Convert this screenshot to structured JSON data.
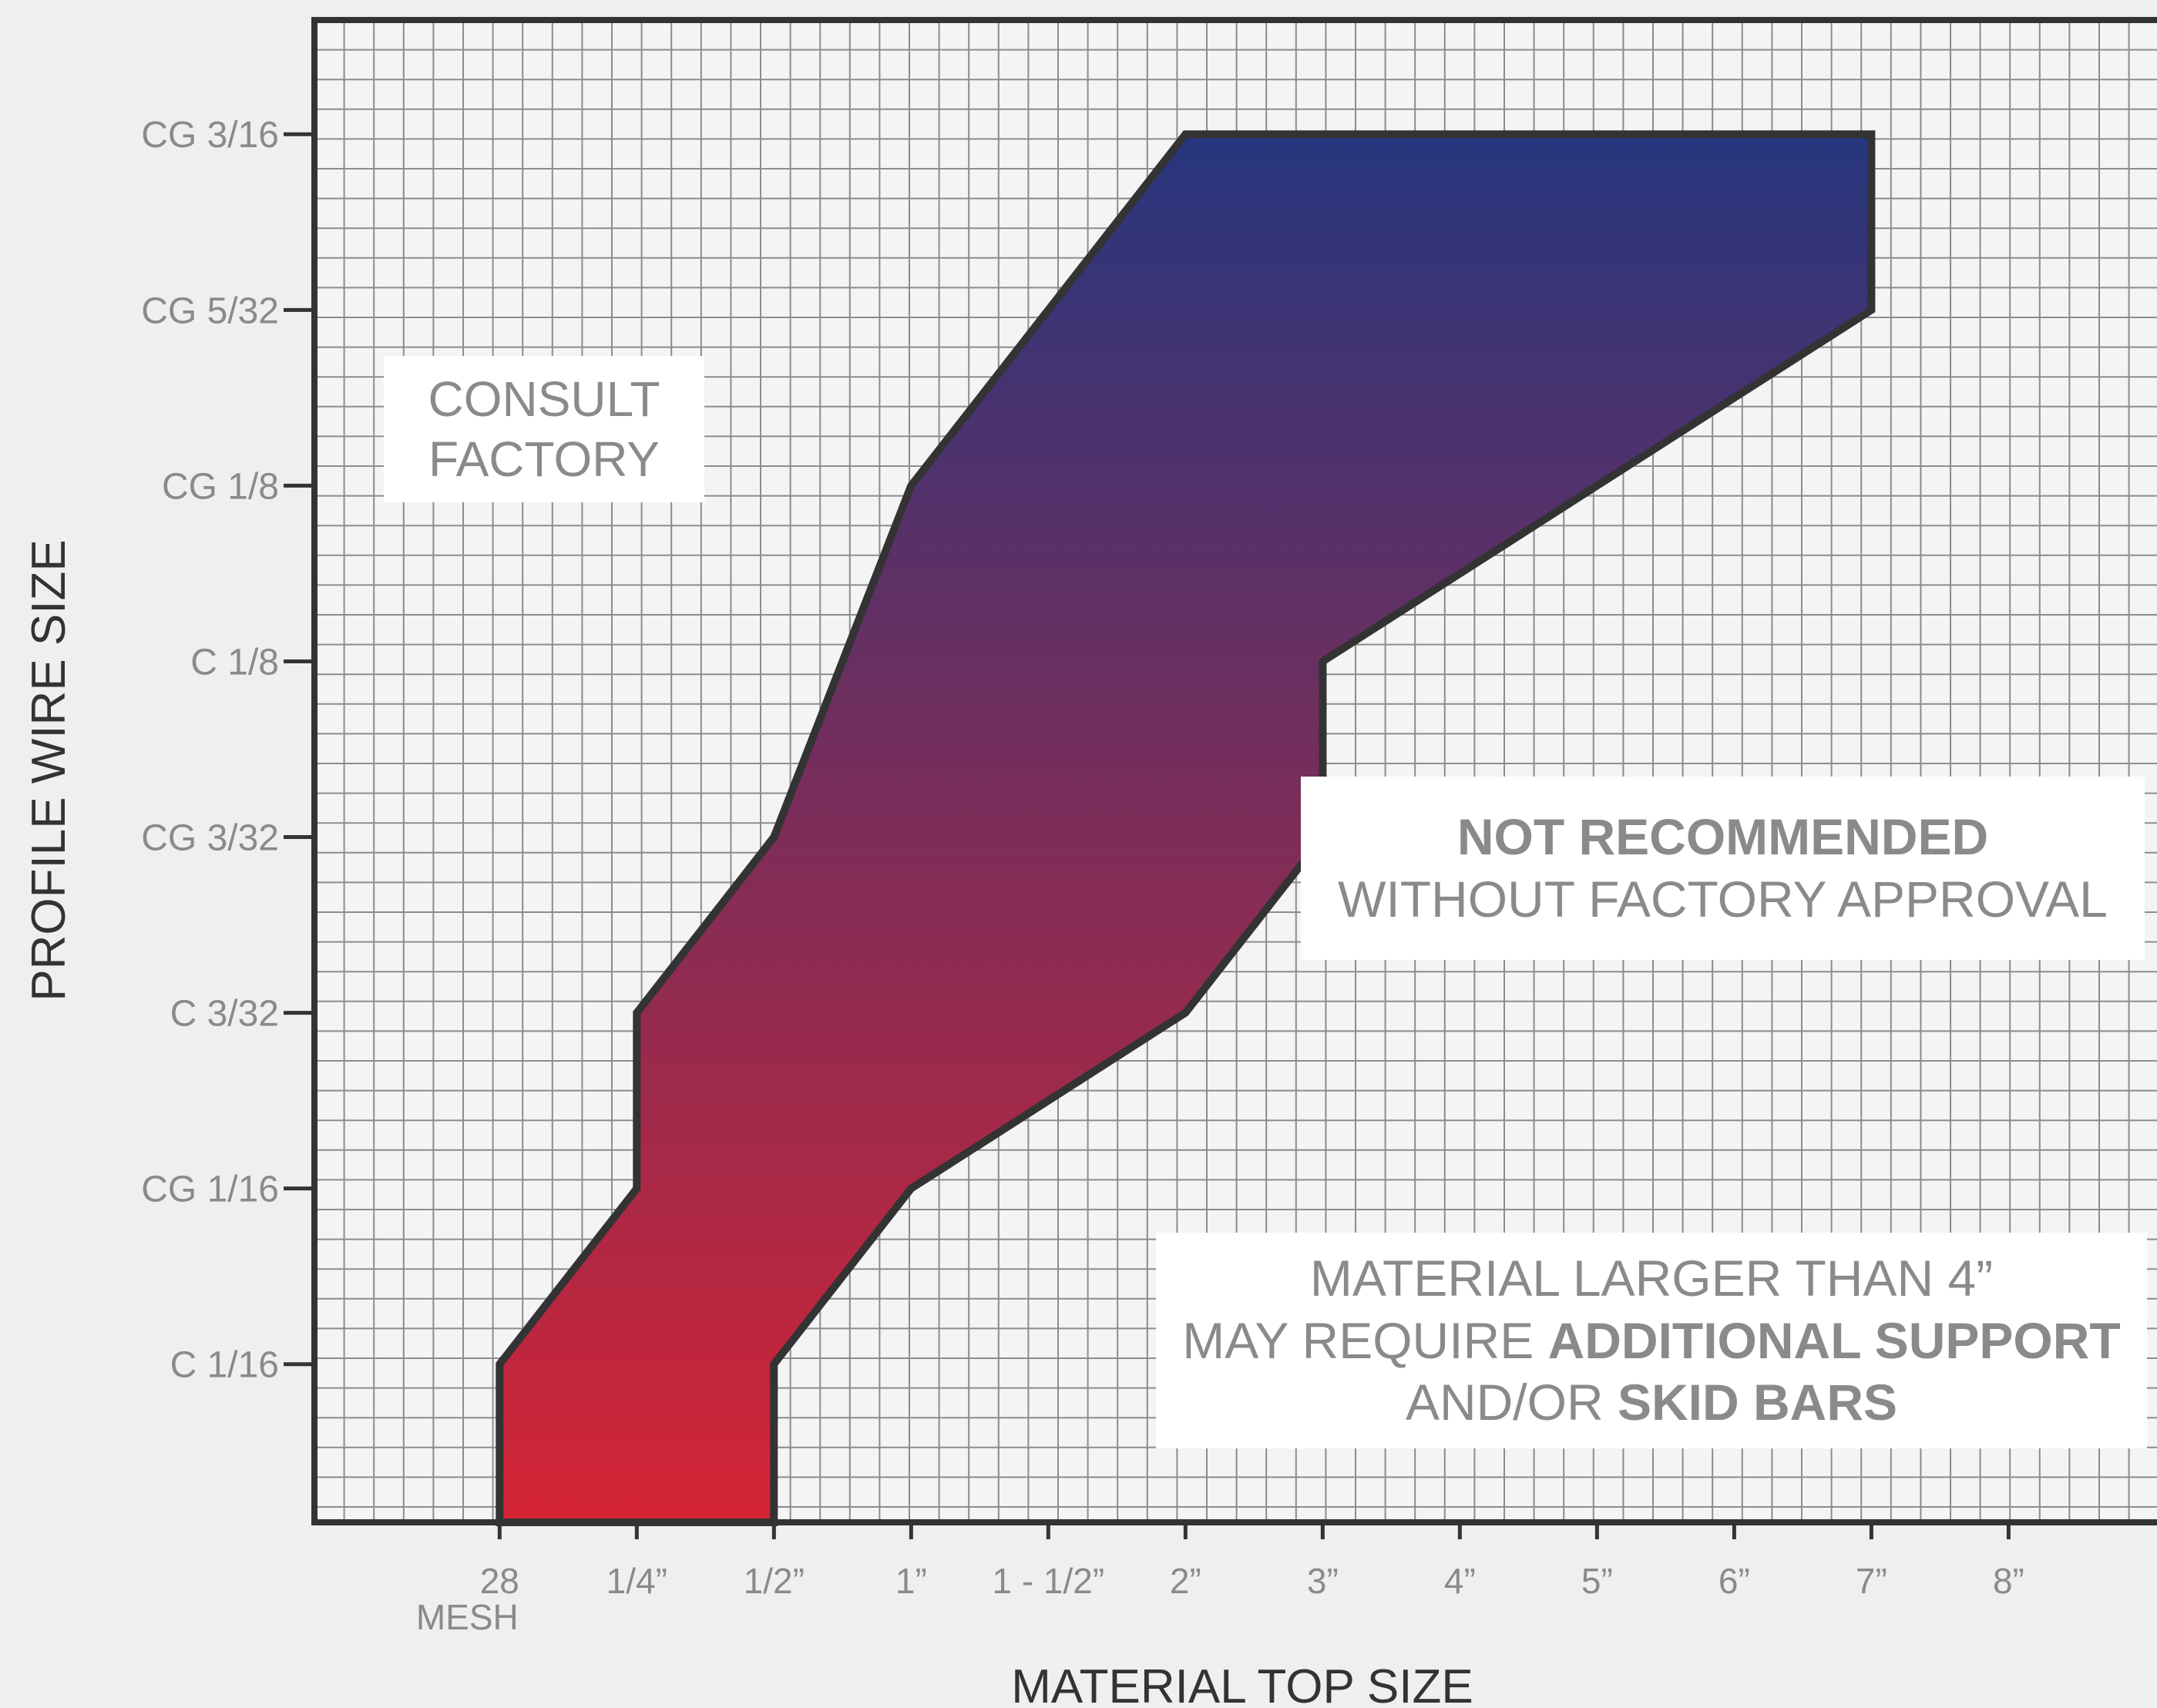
{
  "chart_data": {
    "type": "area",
    "xlabel": "MATERIAL TOP SIZE",
    "ylabel": "PROFILE WIRE SIZE",
    "categories": [
      "28 MESH",
      "1/4”",
      "1/2”",
      "1”",
      "1 - 1/2”",
      "2”",
      "3”",
      "4”",
      "5”",
      "6”",
      "7”",
      "8”"
    ],
    "x_ticks": [
      {
        "label": "28",
        "sublabel": "MESH",
        "value": 0
      },
      {
        "label": "1/4”",
        "value": 1
      },
      {
        "label": "1/2”",
        "value": 2
      },
      {
        "label": "1”",
        "value": 3
      },
      {
        "label": "1 - 1/2”",
        "value": 4
      },
      {
        "label": "2”",
        "value": 5
      },
      {
        "label": "3”",
        "value": 6
      },
      {
        "label": "4”",
        "value": 7
      },
      {
        "label": "5”",
        "value": 8
      },
      {
        "label": "6”",
        "value": 9
      },
      {
        "label": "7”",
        "value": 10
      },
      {
        "label": "8”",
        "value": 11
      }
    ],
    "y_ticks": [
      {
        "label": "C 1/16",
        "value": 1
      },
      {
        "label": "CG 1/16",
        "value": 2
      },
      {
        "label": "C 3/32",
        "value": 3
      },
      {
        "label": "CG 3/32",
        "value": 4
      },
      {
        "label": "C 1/8",
        "value": 5
      },
      {
        "label": "CG 1/8",
        "value": 6
      },
      {
        "label": "CG 5/32",
        "value": 7
      },
      {
        "label": "CG 3/16",
        "value": 8
      }
    ],
    "xlim": [
      -1.35,
      12.2
    ],
    "ylim": [
      0.1,
      8.65
    ],
    "grid": true,
    "recommended_region": [
      [
        0,
        0.1
      ],
      [
        0,
        1
      ],
      [
        1,
        2
      ],
      [
        1,
        3
      ],
      [
        2,
        4
      ],
      [
        3,
        6
      ],
      [
        5,
        8
      ],
      [
        10,
        8
      ],
      [
        10,
        7
      ],
      [
        6,
        5
      ],
      [
        6,
        4
      ],
      [
        5,
        3
      ],
      [
        3,
        2
      ],
      [
        2,
        1
      ],
      [
        2,
        0.1
      ]
    ],
    "gradient": {
      "top": "#26367e",
      "bottom": "#d42434"
    },
    "annotations": {
      "consult": [
        "CONSULT",
        "FACTORY"
      ],
      "not_recommended_bold": "NOT RECOMMENDED",
      "not_recommended_rest": "WITHOUT FACTORY APPROVAL",
      "material_line1": "MATERIAL LARGER THAN 4”",
      "material_line2_prefix": "MAY REQUIRE ",
      "material_line2_bold": "ADDITIONAL SUPPORT",
      "material_line3_prefix": "AND/OR ",
      "material_line3_bold": "SKID BARS"
    }
  },
  "colors": {
    "background": "#efefef",
    "plot_background": "#f4f4f4",
    "grid": "#8c8c8c",
    "frame": "#333333",
    "tick_text": "#8a8a8a",
    "axis_title": "#333333"
  }
}
